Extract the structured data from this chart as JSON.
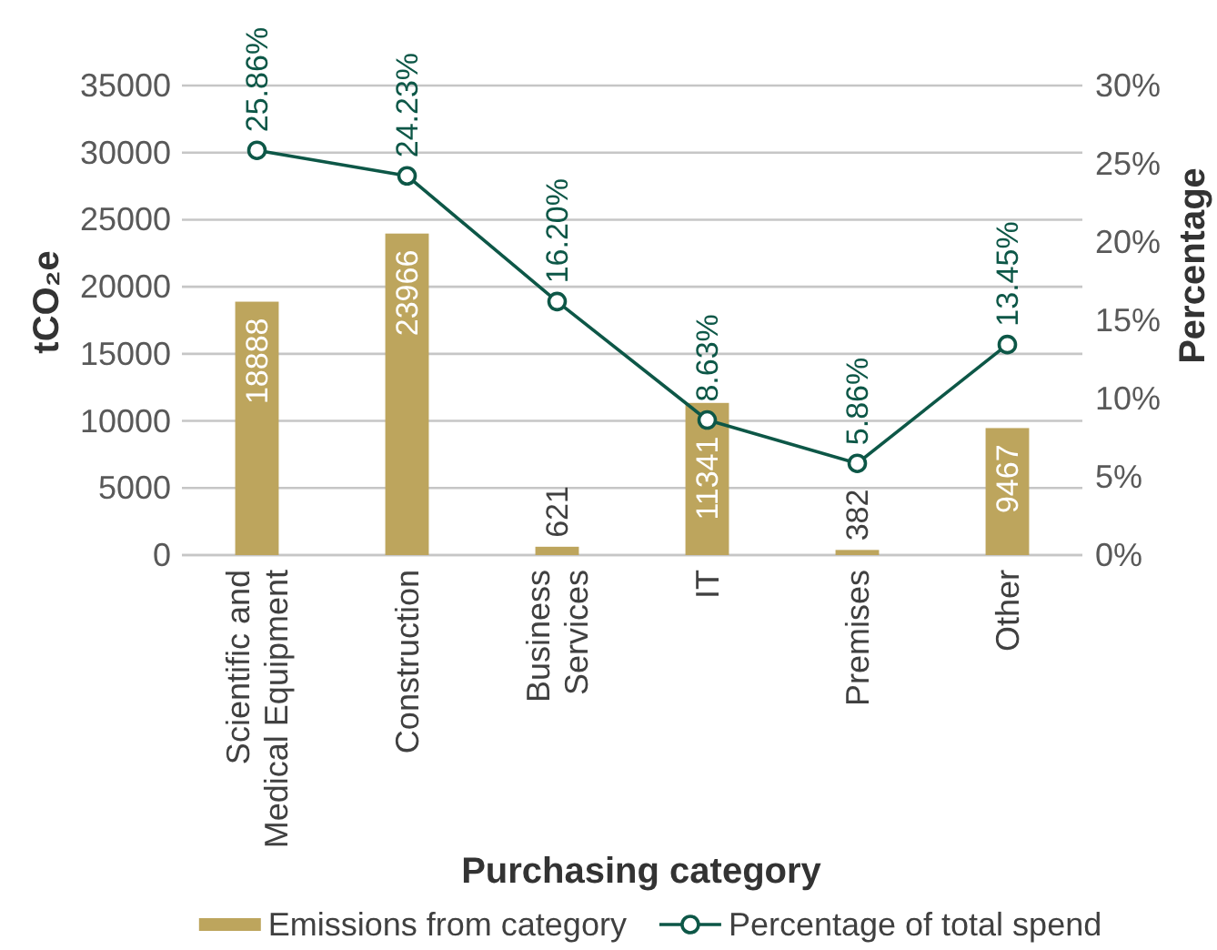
{
  "chart_data": {
    "type": "bar",
    "xlabel": "Purchasing category",
    "ylabel": "tCO₂e",
    "y2label": "Percentage",
    "categories": [
      "Scientific and Medical Equipment",
      "Construction",
      "Business Services",
      "IT",
      "Premises",
      "Other"
    ],
    "series": [
      {
        "name": "Emissions from category",
        "color": "#bda55d",
        "values": [
          18888,
          23966,
          621,
          11341,
          382,
          9467
        ],
        "value_labels": [
          "18888",
          "23966",
          "621",
          "11341",
          "382",
          "9467"
        ]
      },
      {
        "name": "Percentage of total spend",
        "type": "line",
        "axis": "y2",
        "color": "#0d5747",
        "values": [
          25.86,
          24.23,
          16.2,
          8.63,
          5.86,
          13.45
        ],
        "value_labels": [
          "25.86%",
          "24.23%",
          "16.20%",
          "8.63%",
          "5.86%",
          "13.45%"
        ]
      }
    ],
    "ylim": [
      0,
      35000
    ],
    "yticks": [
      0,
      5000,
      10000,
      15000,
      20000,
      25000,
      30000,
      35000
    ],
    "y2lim": [
      0,
      30
    ],
    "y2ticks": [
      {
        "value": 0,
        "label": "0%"
      },
      {
        "value": 5,
        "label": "5%"
      },
      {
        "value": 10,
        "label": "10%"
      },
      {
        "value": 15,
        "label": "15%"
      },
      {
        "value": 20,
        "label": "20%"
      },
      {
        "value": 25,
        "label": "25%"
      },
      {
        "value": 30,
        "label": "30%"
      }
    ],
    "grid": "y",
    "legend": "bottom",
    "marker": "circle"
  }
}
